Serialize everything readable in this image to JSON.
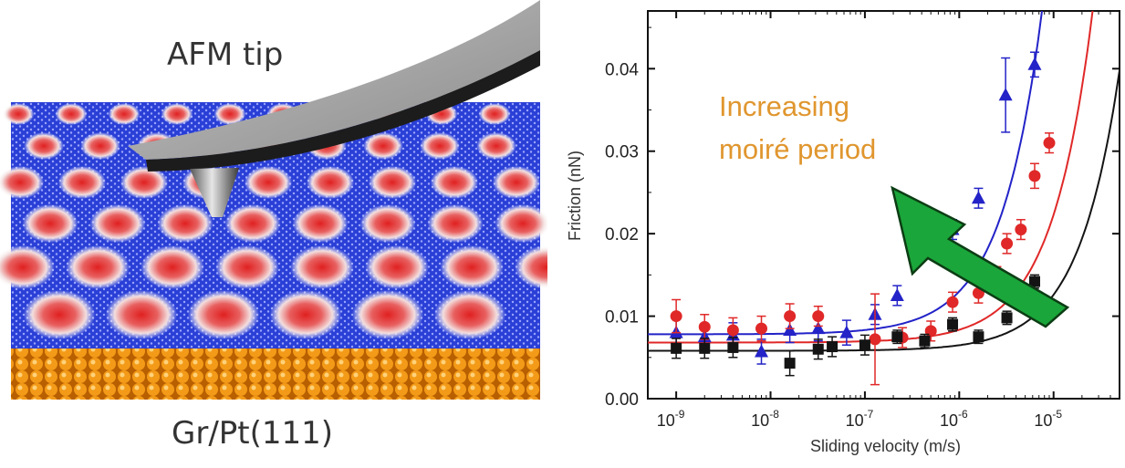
{
  "figure": {
    "tip_label": "AFM tip",
    "substrate_label": "Gr/Pt(111)"
  },
  "colors": {
    "graphene": "#2a3fd6",
    "moire_spot": "#e03030",
    "platinum": "#e08a10",
    "arrow": "#1aa63a",
    "annotation": "#e0962e"
  },
  "chart_data": {
    "type": "scatter",
    "title": "",
    "xlabel": "Sliding velocity (m/s)",
    "ylabel": "Friction (nN)",
    "xscale": "log",
    "xlim": [
      5e-10,
      5e-05
    ],
    "ylim": [
      0,
      0.047
    ],
    "x_ticks": [
      1e-09,
      1e-08,
      1e-07,
      1e-06,
      1e-05
    ],
    "x_tick_labels": [
      {
        "base": "10",
        "exp": "-9"
      },
      {
        "base": "10",
        "exp": "-8"
      },
      {
        "base": "10",
        "exp": "-7"
      },
      {
        "base": "10",
        "exp": "-6"
      },
      {
        "base": "10",
        "exp": "-5"
      }
    ],
    "y_ticks": [
      0,
      0.01,
      0.02,
      0.03,
      0.04
    ],
    "y_tick_labels": [
      "0.00",
      "0.01",
      "0.02",
      "0.03",
      "0.04"
    ],
    "annotation": {
      "line1": "Increasing",
      "line2": "moiré period",
      "arrow": "up-left"
    },
    "series": [
      {
        "marker": "triangle",
        "color": "#2323c8",
        "points": [
          {
            "x": 1e-09,
            "y": 0.008,
            "err": 0.002
          },
          {
            "x": 2e-09,
            "y": 0.0075,
            "err": 0.0015
          },
          {
            "x": 4e-09,
            "y": 0.0077,
            "err": 0.0015
          },
          {
            "x": 8e-09,
            "y": 0.0057,
            "err": 0.0015
          },
          {
            "x": 1.6e-08,
            "y": 0.0083,
            "err": 0.0015
          },
          {
            "x": 3.2e-08,
            "y": 0.0085,
            "err": 0.0015
          },
          {
            "x": 6.4e-08,
            "y": 0.008,
            "err": 0.0015
          },
          {
            "x": 1.28e-07,
            "y": 0.0102,
            "err": 0.0012
          },
          {
            "x": 2.2e-07,
            "y": 0.0125,
            "err": 0.0012
          },
          {
            "x": 4.3e-07,
            "y": 0.0178,
            "err": 0.0008
          },
          {
            "x": 8.5e-07,
            "y": 0.0205,
            "err": 0.0012
          },
          {
            "x": 1.6e-06,
            "y": 0.0243,
            "err": 0.0012
          },
          {
            "x": 3.1e-06,
            "y": 0.0368,
            "err": 0.0045
          },
          {
            "x": 6.3e-06,
            "y": 0.0405,
            "err": 0.0015
          }
        ],
        "fit": {
          "base": 0.0078,
          "k": 5200
        }
      },
      {
        "marker": "circle",
        "color": "#e02828",
        "points": [
          {
            "x": 1e-09,
            "y": 0.01,
            "err": 0.002
          },
          {
            "x": 2e-09,
            "y": 0.0087,
            "err": 0.0015
          },
          {
            "x": 4e-09,
            "y": 0.0083,
            "err": 0.0015
          },
          {
            "x": 8e-09,
            "y": 0.0085,
            "err": 0.0015
          },
          {
            "x": 1.6e-08,
            "y": 0.01,
            "err": 0.0015
          },
          {
            "x": 3.2e-08,
            "y": 0.01,
            "err": 0.0012
          },
          {
            "x": 1.28e-07,
            "y": 0.0072,
            "err": 0.0055
          },
          {
            "x": 2.5e-07,
            "y": 0.0074,
            "err": 0.0012
          },
          {
            "x": 5e-07,
            "y": 0.0082,
            "err": 0.0012
          },
          {
            "x": 8.5e-07,
            "y": 0.0117,
            "err": 0.0012
          },
          {
            "x": 1.6e-06,
            "y": 0.0128,
            "err": 0.0012
          },
          {
            "x": 2.5e-06,
            "y": 0.0145,
            "err": 0.0015
          },
          {
            "x": 3.2e-06,
            "y": 0.0188,
            "err": 0.0012
          },
          {
            "x": 4.5e-06,
            "y": 0.0205,
            "err": 0.0012
          },
          {
            "x": 6.3e-06,
            "y": 0.027,
            "err": 0.0015
          },
          {
            "x": 9e-06,
            "y": 0.031,
            "err": 0.0012
          }
        ],
        "fit": {
          "base": 0.0068,
          "k": 1550
        }
      },
      {
        "marker": "square",
        "color": "#141414",
        "points": [
          {
            "x": 1e-09,
            "y": 0.0061,
            "err": 0.0012
          },
          {
            "x": 2e-09,
            "y": 0.0061,
            "err": 0.0012
          },
          {
            "x": 4e-09,
            "y": 0.0062,
            "err": 0.0012
          },
          {
            "x": 1.6e-08,
            "y": 0.0043,
            "err": 0.0015
          },
          {
            "x": 3.2e-08,
            "y": 0.006,
            "err": 0.0012
          },
          {
            "x": 4.5e-08,
            "y": 0.0063,
            "err": 0.0012
          },
          {
            "x": 1e-07,
            "y": 0.0065,
            "err": 0.0012
          },
          {
            "x": 2.2e-07,
            "y": 0.0075,
            "err": 0.0008
          },
          {
            "x": 4.3e-07,
            "y": 0.007,
            "err": 0.0008
          },
          {
            "x": 8.5e-07,
            "y": 0.009,
            "err": 0.0008
          },
          {
            "x": 1.6e-06,
            "y": 0.0075,
            "err": 0.0008
          },
          {
            "x": 3.2e-06,
            "y": 0.0098,
            "err": 0.0008
          },
          {
            "x": 6.3e-06,
            "y": 0.0142,
            "err": 0.0008
          }
        ],
        "fit": {
          "base": 0.0058,
          "k": 680
        }
      }
    ]
  }
}
